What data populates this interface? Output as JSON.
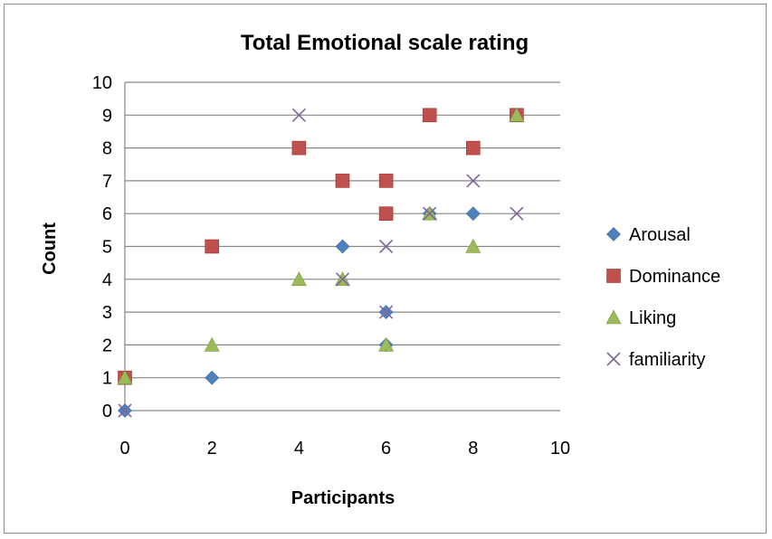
{
  "chart_data": {
    "type": "scatter",
    "title": "Total Emotional scale rating",
    "xlabel": "Participants",
    "ylabel": "Count",
    "xlim": [
      0,
      10
    ],
    "ylim": [
      0,
      10
    ],
    "xticks": [
      0,
      2,
      4,
      6,
      8,
      10
    ],
    "yticks": [
      0,
      1,
      2,
      3,
      4,
      5,
      6,
      7,
      8,
      9,
      10
    ],
    "grid": "horizontal",
    "legend_position": "right",
    "series": [
      {
        "name": "Arousal",
        "marker": "diamond",
        "color": "#4f81bd",
        "points": [
          [
            0,
            0
          ],
          [
            2,
            1
          ],
          [
            5,
            5
          ],
          [
            6,
            3
          ],
          [
            6,
            2
          ],
          [
            7,
            6
          ],
          [
            8,
            6
          ],
          [
            9,
            9
          ]
        ]
      },
      {
        "name": "Dominance",
        "marker": "square",
        "color": "#c0504d",
        "points": [
          [
            0,
            1
          ],
          [
            2,
            5
          ],
          [
            4,
            8
          ],
          [
            5,
            7
          ],
          [
            6,
            7
          ],
          [
            6,
            6
          ],
          [
            7,
            9
          ],
          [
            8,
            8
          ],
          [
            9,
            9
          ]
        ]
      },
      {
        "name": "Liking",
        "marker": "triangle",
        "color": "#9bbb59",
        "points": [
          [
            0,
            1
          ],
          [
            2,
            2
          ],
          [
            4,
            4
          ],
          [
            5,
            4
          ],
          [
            6,
            2
          ],
          [
            7,
            6
          ],
          [
            8,
            5
          ],
          [
            9,
            9
          ]
        ]
      },
      {
        "name": "familiarity",
        "marker": "x",
        "color": "#8064a2",
        "points": [
          [
            0,
            0
          ],
          [
            4,
            9
          ],
          [
            5,
            4
          ],
          [
            6,
            5
          ],
          [
            6,
            3
          ],
          [
            7,
            6
          ],
          [
            8,
            7
          ],
          [
            9,
            6
          ]
        ]
      }
    ]
  }
}
